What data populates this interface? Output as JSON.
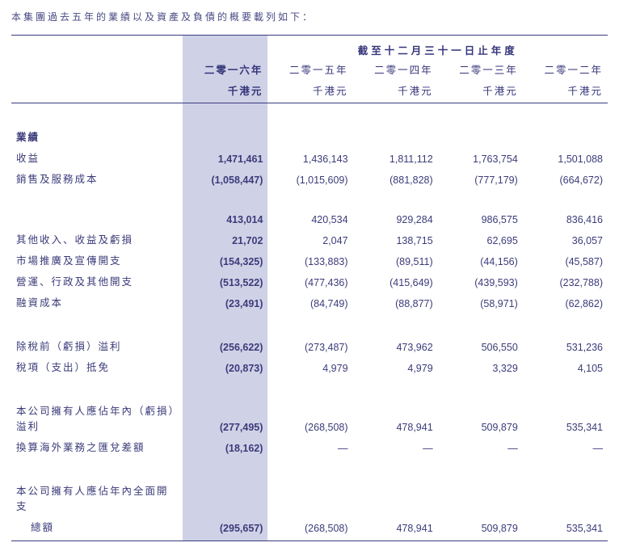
{
  "intro": "本集團過去五年的業績以及資產及負債的概要載列如下：",
  "header": {
    "span": "截至十二月三十一日止年度",
    "years": [
      "二零一六年",
      "二零一五年",
      "二零一四年",
      "二零一三年",
      "二零一二年"
    ],
    "units": [
      "千港元",
      "千港元",
      "千港元",
      "千港元",
      "千港元"
    ]
  },
  "sections": {
    "results_label": "業績"
  },
  "rows": [
    {
      "label": "收益",
      "vals": [
        "1,471,461",
        "1,436,143",
        "1,811,112",
        "1,763,754",
        "1,501,088"
      ]
    },
    {
      "label": "銷售及服務成本",
      "vals": [
        "(1,058,447)",
        "(1,015,609)",
        "(881,828)",
        "(777,179)",
        "(664,672)"
      ]
    }
  ],
  "rows2": [
    {
      "label": "",
      "vals": [
        "413,014",
        "420,534",
        "929,284",
        "986,575",
        "836,416"
      ]
    },
    {
      "label": "其他收入、收益及虧損",
      "vals": [
        "21,702",
        "2,047",
        "138,715",
        "62,695",
        "36,057"
      ]
    },
    {
      "label": "市場推廣及宣傳開支",
      "vals": [
        "(154,325)",
        "(133,883)",
        "(89,511)",
        "(44,156)",
        "(45,587)"
      ]
    },
    {
      "label": "營運、行政及其他開支",
      "vals": [
        "(513,522)",
        "(477,436)",
        "(415,649)",
        "(439,593)",
        "(232,788)"
      ]
    },
    {
      "label": "融資成本",
      "vals": [
        "(23,491)",
        "(84,749)",
        "(88,877)",
        "(58,971)",
        "(62,862)"
      ]
    }
  ],
  "rows3": [
    {
      "label": "除稅前（虧損）溢利",
      "vals": [
        "(256,622)",
        "(273,487)",
        "473,962",
        "506,550",
        "531,236"
      ]
    },
    {
      "label": "稅項（支出）抵免",
      "vals": [
        "(20,873)",
        "4,979",
        "4,979",
        "3,329",
        "4,105"
      ]
    }
  ],
  "rows4": [
    {
      "label": "本公司擁有人應佔年內（虧損）溢利",
      "vals": [
        "(277,495)",
        "(268,508)",
        "478,941",
        "509,879",
        "535,341"
      ]
    },
    {
      "label": "換算海外業務之匯兌差額",
      "vals": [
        "(18,162)",
        "—",
        "—",
        "—",
        "—"
      ]
    }
  ],
  "rows5": [
    {
      "label": "本公司擁有人應佔年內全面開支",
      "label2": "總額",
      "vals": [
        "(295,657)",
        "(268,508)",
        "478,941",
        "509,879",
        "535,341"
      ]
    }
  ],
  "style": {
    "highlight_bg": "#cfd2e6",
    "text_color": "#2a2a6a",
    "border_color": "#3a3a80"
  }
}
